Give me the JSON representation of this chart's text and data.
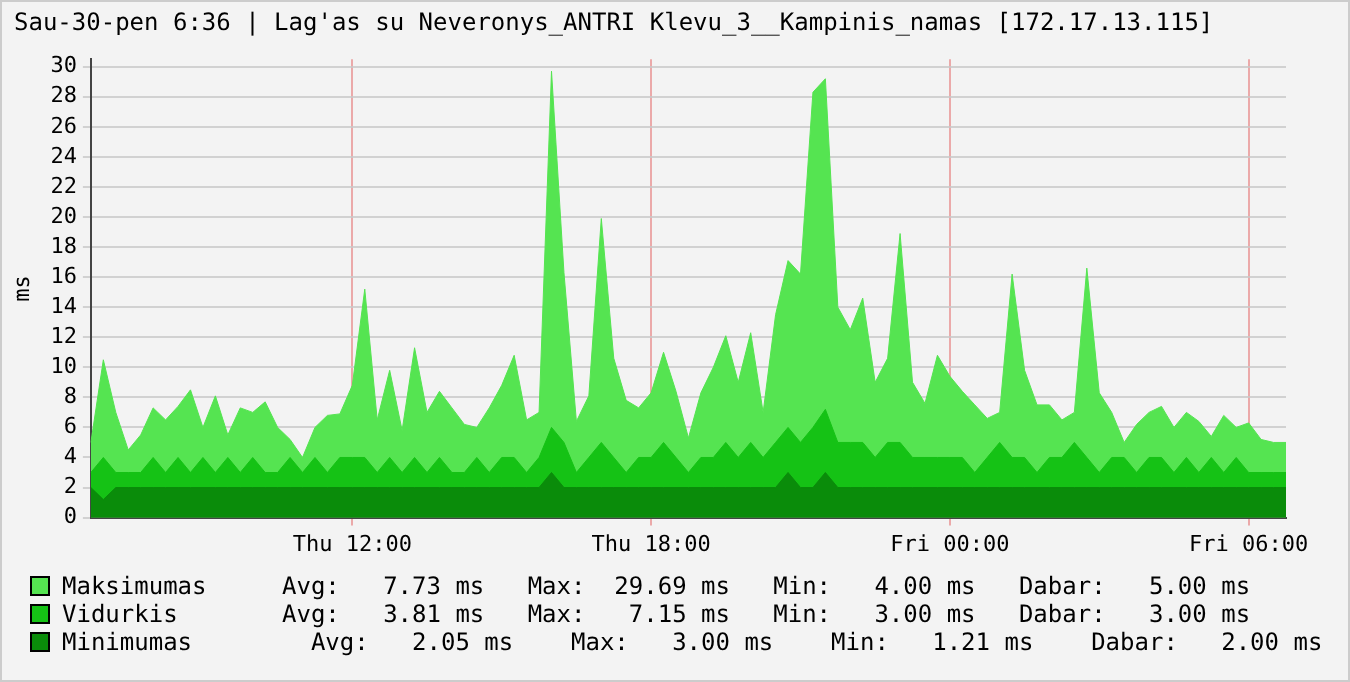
{
  "chart_data": {
    "type": "area",
    "title": "Sau-30-pen 6:36 | Lag'as su Neveronys_ANTRI Klevu_3__Kampinis_namas [172.17.13.115]",
    "ylabel": "ms",
    "categories": [
      null,
      null,
      null,
      null,
      null,
      null,
      null,
      null,
      null,
      null,
      null,
      null,
      null,
      null,
      null,
      null,
      null,
      null,
      null,
      null,
      null,
      "Thu 12:00",
      null,
      null,
      null,
      null,
      null,
      null,
      null,
      null,
      null,
      null,
      null,
      null,
      null,
      null,
      null,
      null,
      null,
      null,
      null,
      null,
      null,
      null,
      null,
      "Thu 18:00",
      null,
      null,
      null,
      null,
      null,
      null,
      null,
      null,
      null,
      null,
      null,
      null,
      null,
      null,
      null,
      null,
      null,
      null,
      null,
      null,
      null,
      null,
      null,
      "Fri 00:00",
      null,
      null,
      null,
      null,
      null,
      null,
      null,
      null,
      null,
      null,
      null,
      null,
      null,
      null,
      null,
      null,
      null,
      null,
      null,
      null,
      null,
      null,
      null,
      "Fri 06:00",
      null,
      null,
      null
    ],
    "series": [
      {
        "name": "Maksimumas",
        "color": "#55e451",
        "values": [
          5,
          10.5,
          7,
          4.5,
          5.5,
          7.3,
          6.5,
          7.4,
          8.5,
          6,
          8.1,
          5.5,
          7.3,
          7,
          7.7,
          6,
          5.2,
          4,
          6,
          6.8,
          6.9,
          8.8,
          15.2,
          6.5,
          9.8,
          5.8,
          11.3,
          7,
          8.4,
          7.3,
          6.2,
          6,
          7.3,
          8.8,
          10.8,
          6.5,
          7,
          29.7,
          16.3,
          6.4,
          8.1,
          19.9,
          10.6,
          7.8,
          7.3,
          8.3,
          11,
          8.4,
          5.3,
          8.3,
          10,
          12.1,
          9,
          12.3,
          7,
          13.5,
          17.1,
          16.2,
          28.3,
          29.2,
          14,
          12.5,
          14.6,
          9,
          10.6,
          18.9,
          9,
          7.6,
          10.8,
          9.4,
          8.4,
          7.5,
          6.6,
          7,
          16.2,
          9.8,
          7.5,
          7.5,
          6.5,
          7,
          16.6,
          8.3,
          7,
          5,
          6.2,
          7,
          7.4,
          6,
          7,
          6.4,
          5.4,
          6.8,
          6,
          6.3,
          5.2,
          5,
          5
        ]
      },
      {
        "name": "Vidurkis",
        "color": "#15c215",
        "values": [
          3,
          4,
          3,
          3,
          3,
          4,
          3,
          4,
          3,
          4,
          3,
          4,
          3,
          4,
          3,
          3,
          4,
          3,
          4,
          3,
          4,
          4,
          4,
          3,
          4,
          3,
          4,
          3,
          4,
          3,
          3,
          4,
          3,
          4,
          4,
          3,
          4,
          6,
          5,
          3,
          4,
          5,
          4,
          3,
          4,
          4,
          5,
          4,
          3,
          4,
          4,
          5,
          4,
          5,
          4,
          5,
          6,
          5,
          6,
          7.2,
          5,
          5,
          5,
          4,
          5,
          5,
          4,
          4,
          4,
          4,
          4,
          3,
          4,
          5,
          4,
          4,
          3,
          4,
          4,
          5,
          4,
          3,
          4,
          4,
          3,
          4,
          4,
          3,
          4,
          3,
          4,
          3,
          4,
          3,
          3,
          3,
          3
        ]
      },
      {
        "name": "Minimumas",
        "color": "#0a8c0a",
        "values": [
          2,
          1.2,
          2,
          2,
          2,
          2,
          2,
          2,
          2,
          2,
          2,
          2,
          2,
          2,
          2,
          2,
          2,
          2,
          2,
          2,
          2,
          2,
          2,
          2,
          2,
          2,
          2,
          2,
          2,
          2,
          2,
          2,
          2,
          2,
          2,
          2,
          2,
          3,
          2,
          2,
          2,
          2,
          2,
          2,
          2,
          2,
          2,
          2,
          2,
          2,
          2,
          2,
          2,
          2,
          2,
          2,
          3,
          2,
          2,
          3,
          2,
          2,
          2,
          2,
          2,
          2,
          2,
          2,
          2,
          2,
          2,
          2,
          2,
          2,
          2,
          2,
          2,
          2,
          2,
          2,
          2,
          2,
          2,
          2,
          2,
          2,
          2,
          2,
          2,
          2,
          2,
          2,
          2,
          2,
          2,
          2,
          2
        ]
      }
    ],
    "ylim": [
      0,
      30.5
    ],
    "yticks": [
      0,
      2,
      4,
      6,
      8,
      10,
      12,
      14,
      16,
      18,
      20,
      22,
      24,
      26,
      28,
      30
    ],
    "grid": true,
    "legend": "bottom",
    "marker": "none",
    "line_style": "solid",
    "annotations": [
      "Avg:   7.73 ms   Max:  29.69 ms   Min:   4.00 ms   Dabar:   5.00 ms",
      "Avg:   3.81 ms   Max:   7.15 ms   Min:   3.00 ms   Dabar:   3.00 ms",
      "  Avg:   2.05 ms    Max:   3.00 ms    Min:   1.21 ms    Dabar:   2.00 ms"
    ]
  }
}
